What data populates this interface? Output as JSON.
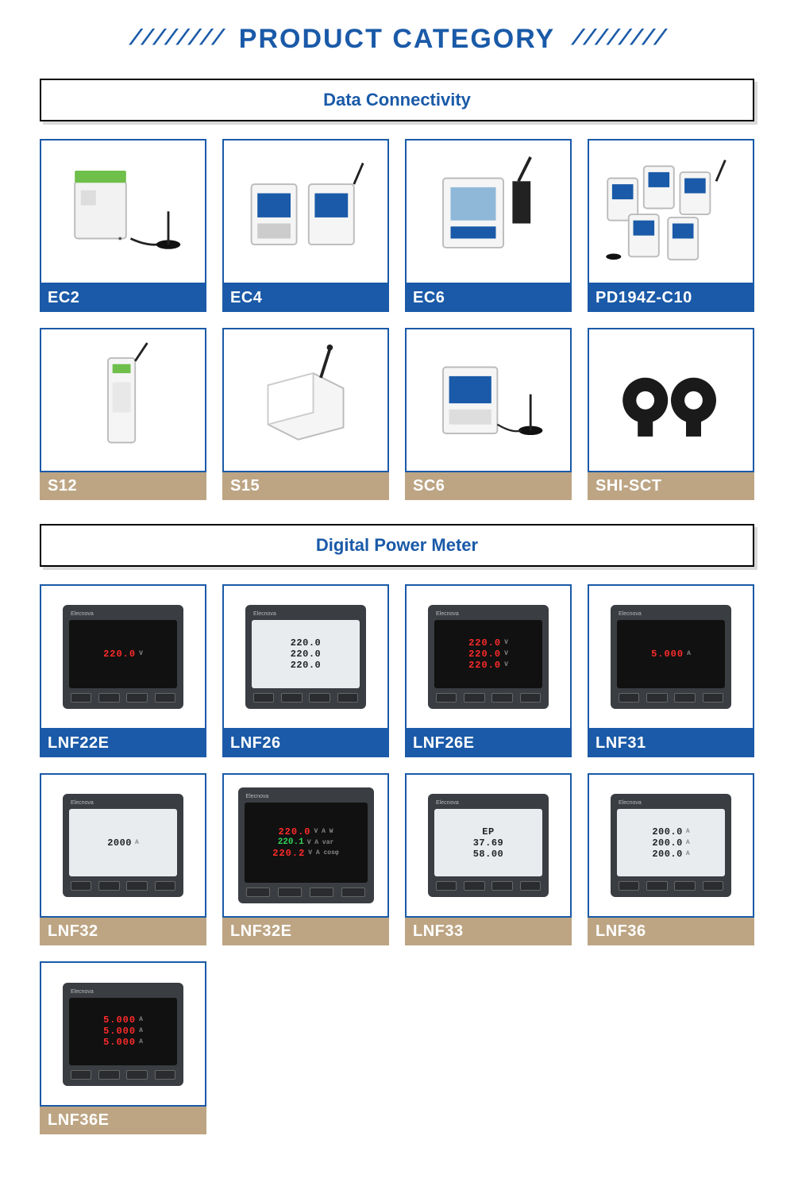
{
  "page_title": "PRODUCT CATEGORY",
  "title_color": "#1a5aa8",
  "slash_deco": "////////",
  "sections": [
    {
      "heading": "Data Connectivity",
      "heading_color": "#1a5aa8",
      "border_color": "#1a5aa8",
      "products": [
        {
          "label": "EC2",
          "label_bg": "#1a5aa8",
          "thumb": "device-antenna"
        },
        {
          "label": "EC4",
          "label_bg": "#1a5aa8",
          "thumb": "device-pair"
        },
        {
          "label": "EC6",
          "label_bg": "#1a5aa8",
          "thumb": "device-lcd"
        },
        {
          "label": "PD194Z-C10",
          "label_bg": "#1a5aa8",
          "thumb": "device-multi"
        },
        {
          "label": "S12",
          "label_bg": "#bda584",
          "thumb": "din-slim"
        },
        {
          "label": "S15",
          "label_bg": "#bda584",
          "thumb": "box-antenna"
        },
        {
          "label": "SC6",
          "label_bg": "#bda584",
          "thumb": "din-antenna"
        },
        {
          "label": "SHI-SCT",
          "label_bg": "#bda584",
          "thumb": "sct-pair"
        }
      ]
    },
    {
      "heading": "Digital Power Meter",
      "heading_color": "#1a5aa8",
      "border_color": "#1a5aa8",
      "products": [
        {
          "label": "LNF22E",
          "label_bg": "#1a5aa8",
          "thumb": "meter",
          "display": "dark",
          "lines": [
            {
              "t": "220.0",
              "c": "led-red",
              "u": "V"
            }
          ]
        },
        {
          "label": "LNF26",
          "label_bg": "#1a5aa8",
          "thumb": "meter",
          "display": "light",
          "lines": [
            {
              "t": "220.0",
              "c": "lcd"
            },
            {
              "t": "220.0",
              "c": "lcd"
            },
            {
              "t": "220.0",
              "c": "lcd"
            }
          ]
        },
        {
          "label": "LNF26E",
          "label_bg": "#1a5aa8",
          "thumb": "meter",
          "display": "dark",
          "lines": [
            {
              "t": "220.0",
              "c": "led-red",
              "u": "V"
            },
            {
              "t": "220.0",
              "c": "led-red",
              "u": "V"
            },
            {
              "t": "220.0",
              "c": "led-red",
              "u": "V"
            }
          ]
        },
        {
          "label": "LNF31",
          "label_bg": "#1a5aa8",
          "thumb": "meter",
          "display": "dark",
          "lines": [
            {
              "t": "5.000",
              "c": "led-red",
              "u": "A"
            }
          ]
        },
        {
          "label": "LNF32",
          "label_bg": "#bda584",
          "thumb": "meter",
          "display": "light",
          "lines": [
            {
              "t": "2000",
              "c": "lcd",
              "u": "A"
            }
          ]
        },
        {
          "label": "LNF32E",
          "label_bg": "#bda584",
          "thumb": "meter-large",
          "display": "dark",
          "lines": [
            {
              "t": "220.0",
              "c": "led-red",
              "u": "V A W"
            },
            {
              "t": "220.1",
              "c": "led-green",
              "u": "V A var"
            },
            {
              "t": "220.2",
              "c": "led-red",
              "u": "V A cosφ"
            }
          ]
        },
        {
          "label": "LNF33",
          "label_bg": "#bda584",
          "thumb": "meter",
          "display": "light",
          "lines": [
            {
              "t": "EP",
              "c": "lcd"
            },
            {
              "t": "37.69",
              "c": "lcd"
            },
            {
              "t": "58.00",
              "c": "lcd"
            }
          ]
        },
        {
          "label": "LNF36",
          "label_bg": "#bda584",
          "thumb": "meter",
          "display": "light",
          "lines": [
            {
              "t": "200.0",
              "c": "lcd",
              "u": "A"
            },
            {
              "t": "200.0",
              "c": "lcd",
              "u": "A"
            },
            {
              "t": "200.0",
              "c": "lcd",
              "u": "A"
            }
          ]
        },
        {
          "label": "LNF36E",
          "label_bg": "#bda584",
          "thumb": "meter",
          "display": "dark",
          "lines": [
            {
              "t": "5.000",
              "c": "led-red",
              "u": "A"
            },
            {
              "t": "5.000",
              "c": "led-red",
              "u": "A"
            },
            {
              "t": "5.000",
              "c": "led-red",
              "u": "A"
            }
          ]
        }
      ]
    }
  ],
  "device_color_din": "#e8e8e8",
  "device_color_accent": "#1a5aa8",
  "device_color_dark": "#222222"
}
